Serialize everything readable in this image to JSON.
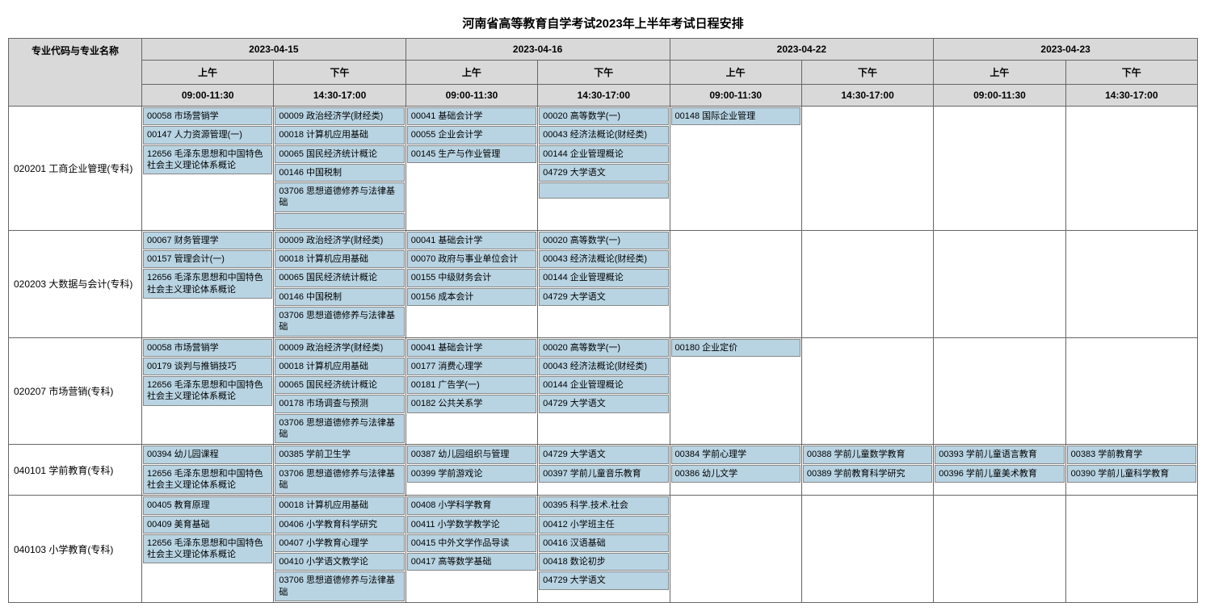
{
  "title": "河南省高等教育自学考试2023年上半年考试日程安排",
  "header": {
    "major_label": "专业代码与专业名称",
    "dates": [
      "2023-04-15",
      "2023-04-16",
      "2023-04-22",
      "2023-04-23"
    ],
    "sessions": [
      "上午",
      "下午"
    ],
    "times": [
      "09:00-11:30",
      "14:30-17:00"
    ]
  },
  "colors": {
    "header_bg": "#d9d9d9",
    "course_bg": "#b8d4e3",
    "border": "#666666"
  },
  "rows": [
    {
      "major": "020201 工商企业管理(专科)",
      "slots": [
        [
          "00058 市场营销学",
          "00147 人力资源管理(一)",
          "12656 毛泽东思想和中国特色社会主义理论体系概论"
        ],
        [
          "00009 政治经济学(财经类)",
          "00018 计算机应用基础",
          "00065 国民经济统计概论",
          "00146 中国税制",
          "03706 思想道德修养与法律基础",
          ""
        ],
        [
          "00041 基础会计学",
          "00055 企业会计学",
          "00145 生产与作业管理"
        ],
        [
          "00020 高等数学(一)",
          "00043 经济法概论(财经类)",
          "00144 企业管理概论",
          "04729 大学语文",
          ""
        ],
        [
          "00148 国际企业管理"
        ],
        [],
        [],
        []
      ]
    },
    {
      "major": "020203 大数据与会计(专科)",
      "slots": [
        [
          "00067 财务管理学",
          "00157 管理会计(一)",
          "12656 毛泽东思想和中国特色社会主义理论体系概论"
        ],
        [
          "00009 政治经济学(财经类)",
          "00018 计算机应用基础",
          "00065 国民经济统计概论",
          "00146 中国税制",
          "03706 思想道德修养与法律基础"
        ],
        [
          "00041 基础会计学",
          "00070 政府与事业单位会计",
          "00155 中级财务会计",
          "00156 成本会计"
        ],
        [
          "00020 高等数学(一)",
          "00043 经济法概论(财经类)",
          "00144 企业管理概论",
          "04729 大学语文"
        ],
        [],
        [],
        [],
        []
      ]
    },
    {
      "major": "020207 市场营销(专科)",
      "slots": [
        [
          "00058 市场营销学",
          "00179 谈判与推销技巧",
          "12656 毛泽东思想和中国特色社会主义理论体系概论"
        ],
        [
          "00009 政治经济学(财经类)",
          "00018 计算机应用基础",
          "00065 国民经济统计概论",
          "00178 市场调查与预测",
          "03706 思想道德修养与法律基础"
        ],
        [
          "00041 基础会计学",
          "00177 消费心理学",
          "00181 广告学(一)",
          "00182 公共关系学"
        ],
        [
          "00020 高等数学(一)",
          "00043 经济法概论(财经类)",
          "00144 企业管理概论",
          "04729 大学语文"
        ],
        [
          "00180 企业定价"
        ],
        [],
        [],
        []
      ]
    },
    {
      "major": "040101 学前教育(专科)",
      "slots": [
        [
          "00394 幼儿园课程",
          "12656 毛泽东思想和中国特色社会主义理论体系概论"
        ],
        [
          "00385 学前卫生学",
          "03706 思想道德修养与法律基础"
        ],
        [
          "00387 幼儿园组织与管理",
          "00399 学前游戏论"
        ],
        [
          "04729 大学语文",
          "00397 学前儿童音乐教育"
        ],
        [
          "00384 学前心理学",
          "00386 幼儿文学"
        ],
        [
          "00388 学前儿童数学教育",
          "00389 学前教育科学研究"
        ],
        [
          "00393 学前儿童语言教育",
          "00396 学前儿童美术教育"
        ],
        [
          "00383 学前教育学",
          "00390 学前儿童科学教育"
        ]
      ]
    },
    {
      "major": "040103 小学教育(专科)",
      "slots": [
        [
          "00405 教育原理",
          "00409 美育基础",
          "12656 毛泽东思想和中国特色社会主义理论体系概论"
        ],
        [
          "00018 计算机应用基础",
          "00406 小学教育科学研究",
          "00407 小学教育心理学",
          "00410 小学语文教学论",
          "03706 思想道德修养与法律基础"
        ],
        [
          "00408 小学科学教育",
          "00411 小学数学教学论",
          "00415 中外文学作品导读",
          "00417 高等数学基础"
        ],
        [
          "00395 科学.技术.社会",
          "00412 小学班主任",
          "00416 汉语基础",
          "00418 数论初步",
          "04729 大学语文"
        ],
        [],
        [],
        [],
        []
      ]
    }
  ]
}
